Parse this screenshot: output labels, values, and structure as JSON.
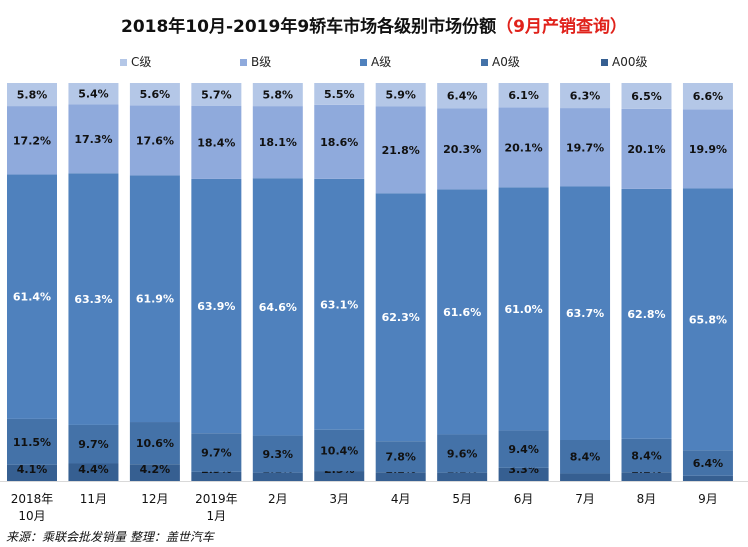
{
  "title": {
    "main": "2018年10月-2019年9轿车市场各级别市场份额",
    "highlight": "（9月产销查询）"
  },
  "source": "来源：乘联会批发销量    整理：盖世汽车",
  "colors": {
    "C级": "#b4c7e7",
    "B级": "#8faadc",
    "A级": "#4f81bd",
    "A0级": "#4472a8",
    "A00级": "#365f91"
  },
  "chart_data": {
    "type": "bar",
    "stacked": true,
    "percent": true,
    "title": "2018年10月-2019年9轿车市场各级别市场份额（9月产销查询）",
    "categories": [
      "2018年10月",
      "11月",
      "12月",
      "2019年1月",
      "2月",
      "3月",
      "4月",
      "5月",
      "6月",
      "7月",
      "8月",
      "9月"
    ],
    "series": [
      {
        "name": "A00级",
        "values": [
          4.1,
          4.4,
          4.2,
          2.3,
          2.1,
          2.5,
          2.2,
          2.1,
          3.3,
          1.9,
          2.2,
          1.3
        ]
      },
      {
        "name": "A0级",
        "values": [
          11.5,
          9.7,
          10.6,
          9.7,
          9.3,
          10.4,
          7.8,
          9.6,
          9.4,
          8.4,
          8.4,
          6.4
        ]
      },
      {
        "name": "A级",
        "values": [
          61.4,
          63.3,
          61.9,
          63.9,
          64.6,
          63.1,
          62.3,
          61.6,
          61.0,
          63.7,
          62.8,
          65.8
        ]
      },
      {
        "name": "B级",
        "values": [
          17.2,
          17.3,
          17.6,
          18.4,
          18.1,
          18.6,
          21.8,
          20.3,
          20.1,
          19.7,
          20.1,
          19.9
        ]
      },
      {
        "name": "C级",
        "values": [
          5.8,
          5.4,
          5.6,
          5.7,
          5.8,
          5.5,
          5.9,
          6.4,
          6.1,
          6.3,
          6.5,
          6.6
        ]
      }
    ],
    "legend": [
      "C级",
      "B级",
      "A级",
      "A0级",
      "A00级"
    ],
    "legend_position": "top",
    "ylim": [
      0,
      100
    ],
    "grid": false
  }
}
